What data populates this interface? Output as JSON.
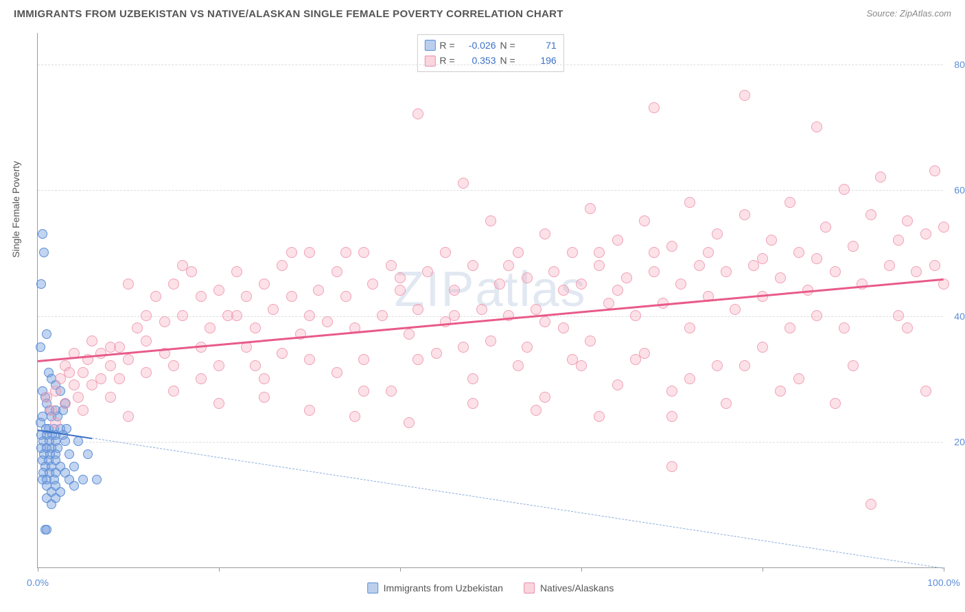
{
  "header": {
    "title": "IMMIGRANTS FROM UZBEKISTAN VS NATIVE/ALASKAN SINGLE FEMALE POVERTY CORRELATION CHART",
    "source": "Source: ZipAtlas.com"
  },
  "watermark": "ZIPatlas",
  "chart": {
    "type": "scatter",
    "y_axis_label": "Single Female Poverty",
    "xlim": [
      0,
      100
    ],
    "ylim": [
      0,
      85
    ],
    "x_ticks": [
      0,
      20,
      40,
      60,
      80,
      100
    ],
    "x_tick_labels": [
      "0.0%",
      "",
      "",
      "",
      "",
      "100.0%"
    ],
    "y_gridlines": [
      20,
      40,
      60,
      80
    ],
    "y_tick_labels": [
      "20.0%",
      "40.0%",
      "60.0%",
      "80.0%"
    ],
    "grid_color": "#dddddd",
    "axis_color": "#999999",
    "background_color": "#ffffff",
    "tick_label_color": "#5b8dd8",
    "tick_label_fontsize": 14,
    "title_color": "#555555",
    "title_fontsize": 15,
    "marker_radius_blue": 7,
    "marker_radius_pink": 8,
    "series": [
      {
        "name": "Immigrants from Uzbekistan",
        "color_fill": "rgba(120,160,220,0.45)",
        "color_stroke": "#5b8dd8",
        "R": "-0.026",
        "N": "71",
        "trend": {
          "x1": 0,
          "y1": 22,
          "x2": 100,
          "y2": 0,
          "color": "#3a6fc4",
          "solid_until_x": 6,
          "dash_after": true
        },
        "points": [
          [
            0.5,
            53
          ],
          [
            0.7,
            50
          ],
          [
            0.4,
            45
          ],
          [
            1.0,
            37
          ],
          [
            0.3,
            35
          ],
          [
            1.2,
            31
          ],
          [
            1.5,
            30
          ],
          [
            2.0,
            29
          ],
          [
            0.5,
            28
          ],
          [
            2.5,
            28
          ],
          [
            0.8,
            27
          ],
          [
            1.0,
            26
          ],
          [
            1.3,
            25
          ],
          [
            2.0,
            25
          ],
          [
            2.8,
            25
          ],
          [
            3.0,
            26
          ],
          [
            0.5,
            24
          ],
          [
            1.5,
            24
          ],
          [
            2.2,
            24
          ],
          [
            0.3,
            23
          ],
          [
            0.9,
            22
          ],
          [
            1.2,
            22
          ],
          [
            1.8,
            22
          ],
          [
            2.5,
            22
          ],
          [
            3.2,
            22
          ],
          [
            0.4,
            21
          ],
          [
            1.0,
            21
          ],
          [
            1.6,
            21
          ],
          [
            2.0,
            21
          ],
          [
            2.8,
            21
          ],
          [
            0.6,
            20
          ],
          [
            1.3,
            20
          ],
          [
            2.0,
            20
          ],
          [
            3.0,
            20
          ],
          [
            4.5,
            20
          ],
          [
            0.4,
            19
          ],
          [
            1.0,
            19
          ],
          [
            1.5,
            19
          ],
          [
            2.2,
            19
          ],
          [
            0.7,
            18
          ],
          [
            1.4,
            18
          ],
          [
            2.0,
            18
          ],
          [
            3.5,
            18
          ],
          [
            5.5,
            18
          ],
          [
            0.5,
            17
          ],
          [
            1.2,
            17
          ],
          [
            2.0,
            17
          ],
          [
            0.8,
            16
          ],
          [
            1.5,
            16
          ],
          [
            2.5,
            16
          ],
          [
            4.0,
            16
          ],
          [
            0.6,
            15
          ],
          [
            1.3,
            15
          ],
          [
            2.0,
            15
          ],
          [
            3.0,
            15
          ],
          [
            0.5,
            14
          ],
          [
            1.0,
            14
          ],
          [
            1.8,
            14
          ],
          [
            3.5,
            14
          ],
          [
            5.0,
            14
          ],
          [
            1.0,
            13
          ],
          [
            2.0,
            13
          ],
          [
            4.0,
            13
          ],
          [
            6.5,
            14
          ],
          [
            1.5,
            12
          ],
          [
            2.5,
            12
          ],
          [
            1.0,
            11
          ],
          [
            2.0,
            11
          ],
          [
            1.5,
            10
          ],
          [
            0.8,
            6
          ],
          [
            1.0,
            6
          ]
        ]
      },
      {
        "name": "Natives/Alaskans",
        "color_fill": "rgba(245,170,190,0.35)",
        "color_stroke": "#f0a0b5",
        "R": "0.353",
        "N": "196",
        "trend": {
          "x1": 0,
          "y1": 33,
          "x2": 100,
          "y2": 46,
          "color": "#e85a8a",
          "solid_until_x": 100,
          "dash_after": false
        },
        "points": [
          [
            1,
            27
          ],
          [
            1.5,
            25
          ],
          [
            2,
            28
          ],
          [
            2,
            23
          ],
          [
            2.5,
            30
          ],
          [
            3,
            32
          ],
          [
            3,
            26
          ],
          [
            3.5,
            31
          ],
          [
            4,
            29
          ],
          [
            4,
            34
          ],
          [
            4.5,
            27
          ],
          [
            5,
            31
          ],
          [
            5,
            25
          ],
          [
            5.5,
            33
          ],
          [
            6,
            29
          ],
          [
            6,
            36
          ],
          [
            7,
            30
          ],
          [
            7,
            34
          ],
          [
            8,
            32
          ],
          [
            8,
            27
          ],
          [
            9,
            35
          ],
          [
            9,
            30
          ],
          [
            10,
            45
          ],
          [
            10,
            33
          ],
          [
            11,
            38
          ],
          [
            12,
            31
          ],
          [
            12,
            36
          ],
          [
            13,
            43
          ],
          [
            14,
            34
          ],
          [
            14,
            39
          ],
          [
            15,
            45
          ],
          [
            15,
            32
          ],
          [
            16,
            40
          ],
          [
            17,
            47
          ],
          [
            18,
            35
          ],
          [
            18,
            43
          ],
          [
            19,
            38
          ],
          [
            20,
            44
          ],
          [
            20,
            32
          ],
          [
            21,
            40
          ],
          [
            22,
            47
          ],
          [
            23,
            35
          ],
          [
            23,
            43
          ],
          [
            24,
            38
          ],
          [
            25,
            45
          ],
          [
            25,
            30
          ],
          [
            26,
            41
          ],
          [
            27,
            48
          ],
          [
            27,
            34
          ],
          [
            28,
            43
          ],
          [
            29,
            37
          ],
          [
            30,
            50
          ],
          [
            30,
            33
          ],
          [
            31,
            44
          ],
          [
            32,
            39
          ],
          [
            33,
            47
          ],
          [
            33,
            31
          ],
          [
            34,
            43
          ],
          [
            35,
            38
          ],
          [
            36,
            50
          ],
          [
            36,
            33
          ],
          [
            37,
            45
          ],
          [
            38,
            40
          ],
          [
            39,
            48
          ],
          [
            39,
            28
          ],
          [
            40,
            44
          ],
          [
            41,
            37
          ],
          [
            42,
            72
          ],
          [
            42,
            41
          ],
          [
            43,
            47
          ],
          [
            44,
            34
          ],
          [
            45,
            50
          ],
          [
            45,
            39
          ],
          [
            46,
            44
          ],
          [
            47,
            61
          ],
          [
            47,
            35
          ],
          [
            48,
            48
          ],
          [
            49,
            41
          ],
          [
            50,
            55
          ],
          [
            50,
            36
          ],
          [
            51,
            45
          ],
          [
            52,
            40
          ],
          [
            53,
            50
          ],
          [
            53,
            32
          ],
          [
            54,
            46
          ],
          [
            55,
            41
          ],
          [
            56,
            53
          ],
          [
            56,
            27
          ],
          [
            57,
            47
          ],
          [
            58,
            38
          ],
          [
            59,
            50
          ],
          [
            59,
            33
          ],
          [
            60,
            45
          ],
          [
            61,
            57
          ],
          [
            61,
            36
          ],
          [
            62,
            48
          ],
          [
            63,
            42
          ],
          [
            64,
            52
          ],
          [
            64,
            29
          ],
          [
            65,
            46
          ],
          [
            66,
            40
          ],
          [
            67,
            55
          ],
          [
            67,
            34
          ],
          [
            68,
            73
          ],
          [
            68,
            47
          ],
          [
            69,
            42
          ],
          [
            70,
            51
          ],
          [
            70,
            24
          ],
          [
            71,
            45
          ],
          [
            72,
            58
          ],
          [
            72,
            38
          ],
          [
            73,
            48
          ],
          [
            74,
            43
          ],
          [
            75,
            53
          ],
          [
            75,
            32
          ],
          [
            76,
            47
          ],
          [
            77,
            41
          ],
          [
            78,
            56
          ],
          [
            78,
            75
          ],
          [
            79,
            48
          ],
          [
            80,
            43
          ],
          [
            80,
            35
          ],
          [
            81,
            52
          ],
          [
            82,
            46
          ],
          [
            83,
            58
          ],
          [
            83,
            38
          ],
          [
            84,
            50
          ],
          [
            85,
            44
          ],
          [
            86,
            70
          ],
          [
            86,
            40
          ],
          [
            87,
            54
          ],
          [
            88,
            47
          ],
          [
            89,
            60
          ],
          [
            89,
            38
          ],
          [
            90,
            51
          ],
          [
            91,
            45
          ],
          [
            92,
            56
          ],
          [
            92,
            10
          ],
          [
            93,
            62
          ],
          [
            94,
            48
          ],
          [
            95,
            52
          ],
          [
            95,
            40
          ],
          [
            96,
            55
          ],
          [
            97,
            47
          ],
          [
            98,
            53
          ],
          [
            98,
            28
          ],
          [
            99,
            48
          ],
          [
            99,
            63
          ],
          [
            100,
            54
          ],
          [
            100,
            45
          ],
          [
            70,
            16
          ],
          [
            62,
            24
          ],
          [
            55,
            25
          ],
          [
            48,
            26
          ],
          [
            41,
            23
          ],
          [
            35,
            24
          ],
          [
            30,
            25
          ],
          [
            25,
            27
          ],
          [
            20,
            26
          ],
          [
            15,
            28
          ],
          [
            10,
            24
          ],
          [
            8,
            35
          ],
          [
            12,
            40
          ],
          [
            18,
            30
          ],
          [
            24,
            32
          ],
          [
            30,
            40
          ],
          [
            36,
            28
          ],
          [
            42,
            33
          ],
          [
            48,
            30
          ],
          [
            54,
            35
          ],
          [
            60,
            32
          ],
          [
            66,
            33
          ],
          [
            72,
            30
          ],
          [
            78,
            32
          ],
          [
            84,
            30
          ],
          [
            90,
            32
          ],
          [
            96,
            38
          ],
          [
            88,
            26
          ],
          [
            82,
            28
          ],
          [
            76,
            26
          ],
          [
            70,
            28
          ],
          [
            64,
            44
          ],
          [
            58,
            44
          ],
          [
            52,
            48
          ],
          [
            46,
            40
          ],
          [
            40,
            46
          ],
          [
            34,
            50
          ],
          [
            28,
            50
          ],
          [
            22,
            40
          ],
          [
            16,
            48
          ],
          [
            86,
            49
          ],
          [
            80,
            49
          ],
          [
            74,
            50
          ],
          [
            68,
            50
          ],
          [
            62,
            50
          ],
          [
            56,
            39
          ]
        ]
      }
    ],
    "legend_top": {
      "r_label": "R =",
      "n_label": "N ="
    },
    "legend_bottom": [
      {
        "swatch": "blue",
        "label": "Immigrants from Uzbekistan"
      },
      {
        "swatch": "pink",
        "label": "Natives/Alaskans"
      }
    ]
  }
}
